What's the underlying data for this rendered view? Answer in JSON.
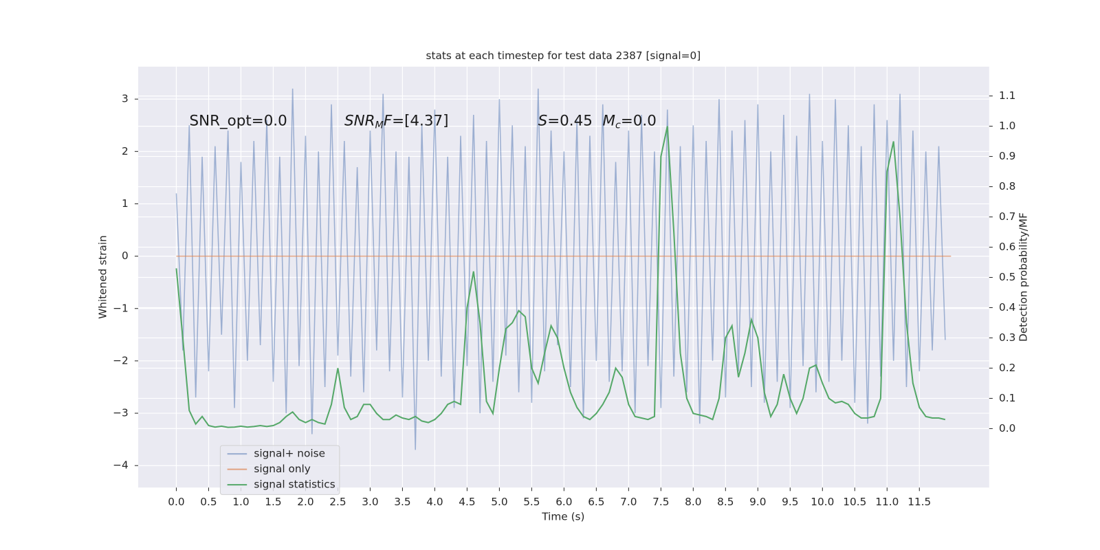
{
  "chart_data": {
    "type": "line",
    "title": "stats at each timestep for test data 2387 [signal=0]",
    "xlabel": "Time (s)",
    "ylabel": "Whitened strain",
    "y2label": "Detection probability/MF",
    "xlim": [
      -0.59,
      12.58
    ],
    "ylim": [
      -4.42,
      3.62
    ],
    "y2lim": [
      -0.195,
      1.197
    ],
    "xticks": [
      {
        "value": 0,
        "label": "0.0"
      },
      0.5,
      {
        "value": 1,
        "label": "1.0"
      },
      1.5,
      {
        "value": 2,
        "label": "2.0"
      },
      2.5,
      {
        "value": 3,
        "label": "3.0"
      },
      3.5,
      {
        "value": 4,
        "label": "4.0"
      },
      4.5,
      {
        "value": 5,
        "label": "5.0"
      },
      5.5,
      {
        "value": 6,
        "label": "6.0"
      },
      6.5,
      {
        "value": 7,
        "label": "7.0"
      },
      7.5,
      {
        "value": 8,
        "label": "8.0"
      },
      8.5,
      {
        "value": 9,
        "label": "9.0"
      },
      9.5,
      {
        "value": 10,
        "label": "10.0"
      },
      10.5,
      {
        "value": 11,
        "label": "11.0"
      },
      11.5
    ],
    "yticks": [
      {
        "value": -4,
        "label": "−4"
      },
      {
        "value": -3,
        "label": "−3"
      },
      {
        "value": -2,
        "label": "−2"
      },
      {
        "value": -1,
        "label": "−1"
      },
      0,
      1,
      2,
      3
    ],
    "y2ticks": [
      {
        "value": 0,
        "label": "0.0"
      },
      0.1,
      0.2,
      0.3,
      0.4,
      0.5,
      0.6,
      0.7,
      0.8,
      0.9,
      {
        "value": 1,
        "label": "1.0"
      },
      1.1
    ],
    "grid": true,
    "background": "#eaeaf2",
    "legend": "lower left",
    "annotations": [
      {
        "parts": [
          {
            "text": "SNR_opt=0.0",
            "style": "normal"
          }
        ]
      },
      {
        "parts": [
          {
            "text": "SNR",
            "style": "italic"
          },
          {
            "text": "M",
            "style": "sub"
          },
          {
            "text": "F",
            "style": "italic"
          },
          {
            "text": "=[4.37]",
            "style": "normal"
          }
        ]
      },
      {
        "parts": [
          {
            "text": "S",
            "style": "italic"
          },
          {
            "text": "=0.45",
            "style": "normal"
          }
        ]
      },
      {
        "parts": [
          {
            "text": "M",
            "style": "italic"
          },
          {
            "text": "c",
            "style": "sub"
          },
          {
            "text": "=0.0",
            "style": "normal"
          }
        ]
      }
    ],
    "x": [
      0,
      0.1,
      0.2,
      0.3,
      0.4,
      0.5,
      0.6,
      0.7,
      0.8,
      0.9,
      1,
      1.1,
      1.2,
      1.3,
      1.4,
      1.5,
      1.6,
      1.7,
      1.8,
      1.9,
      2,
      2.1,
      2.2,
      2.3,
      2.4,
      2.5,
      2.6,
      2.7,
      2.8,
      2.9,
      3,
      3.1,
      3.2,
      3.3,
      3.4,
      3.5,
      3.6,
      3.7,
      3.8,
      3.9,
      4,
      4.1,
      4.2,
      4.3,
      4.4,
      4.5,
      4.6,
      4.7,
      4.8,
      4.9,
      5,
      5.1,
      5.2,
      5.3,
      5.4,
      5.5,
      5.6,
      5.7,
      5.8,
      5.9,
      6,
      6.1,
      6.2,
      6.3,
      6.4,
      6.5,
      6.6,
      6.7,
      6.8,
      6.9,
      7,
      7.1,
      7.2,
      7.3,
      7.4,
      7.5,
      7.6,
      7.7,
      7.8,
      7.9,
      8,
      8.1,
      8.2,
      8.3,
      8.4,
      8.5,
      8.6,
      8.7,
      8.8,
      8.9,
      9,
      9.1,
      9.2,
      9.3,
      9.4,
      9.5,
      9.6,
      9.7,
      9.8,
      9.9,
      10,
      10.1,
      10.2,
      10.3,
      10.4,
      10.5,
      10.6,
      10.7,
      10.8,
      10.9,
      11,
      11.1,
      11.2,
      11.3,
      11.4,
      11.5,
      11.6,
      11.7,
      11.8,
      11.9
    ],
    "series": [
      {
        "name": "signal+ noise",
        "color": "#4c72b0",
        "opacity": 0.5,
        "axis": "y",
        "values": [
          1.2,
          -1.8,
          2.5,
          -2.7,
          1.9,
          -2.2,
          2.1,
          -1.5,
          2.4,
          -2.9,
          1.8,
          -2.0,
          2.2,
          -1.7,
          2.6,
          -2.4,
          1.9,
          -3.0,
          3.2,
          -2.1,
          2.3,
          -3.4,
          2.0,
          -2.5,
          2.9,
          -1.9,
          2.2,
          -2.3,
          1.7,
          -2.6,
          2.4,
          -1.8,
          3.1,
          -2.2,
          2.0,
          -2.7,
          1.9,
          -3.7,
          2.5,
          -2.0,
          2.8,
          -2.3,
          1.9,
          -2.9,
          2.3,
          -2.1,
          2.7,
          -3.0,
          2.2,
          -2.4,
          3.0,
          -1.9,
          2.5,
          -2.6,
          2.1,
          -2.8,
          3.2,
          -2.2,
          2.4,
          -1.7,
          2.0,
          -2.5,
          2.6,
          -3.1,
          2.3,
          -2.0,
          2.9,
          -2.4,
          1.8,
          -2.2,
          2.4,
          -3.0,
          2.7,
          -2.1,
          2.0,
          -2.9,
          2.8,
          -2.3,
          2.1,
          -2.6,
          2.5,
          -3.2,
          2.2,
          -2.0,
          3.0,
          -2.7,
          2.4,
          -2.2,
          2.6,
          -2.5,
          2.9,
          -2.8,
          2.0,
          -2.4,
          2.7,
          -2.9,
          2.3,
          -2.1,
          3.1,
          -2.6,
          2.2,
          -2.4,
          3.0,
          -2.0,
          2.5,
          -2.8,
          2.1,
          -3.2,
          2.9,
          -2.3,
          2.6,
          -2.0,
          3.1,
          -2.5,
          2.4,
          -2.2,
          2.0,
          -1.8,
          2.1,
          -1.6
        ]
      },
      {
        "name": "signal only",
        "color": "#dd8452",
        "opacity": 0.7,
        "axis": "y",
        "x": [
          0,
          11.99
        ],
        "values": [
          0,
          0
        ]
      },
      {
        "name": "signal statistics",
        "color": "#55a868",
        "opacity": 1,
        "axis": "y2",
        "values": [
          0.53,
          0.3,
          0.06,
          0.015,
          0.04,
          0.01,
          0.005,
          0.008,
          0.004,
          0.005,
          0.008,
          0.005,
          0.007,
          0.01,
          0.007,
          0.01,
          0.02,
          0.04,
          0.055,
          0.03,
          0.02,
          0.03,
          0.02,
          0.015,
          0.08,
          0.2,
          0.07,
          0.03,
          0.04,
          0.08,
          0.08,
          0.05,
          0.03,
          0.03,
          0.045,
          0.035,
          0.03,
          0.04,
          0.025,
          0.02,
          0.03,
          0.05,
          0.08,
          0.09,
          0.08,
          0.4,
          0.52,
          0.35,
          0.09,
          0.05,
          0.2,
          0.33,
          0.35,
          0.39,
          0.37,
          0.2,
          0.15,
          0.25,
          0.34,
          0.3,
          0.2,
          0.12,
          0.07,
          0.04,
          0.03,
          0.05,
          0.08,
          0.12,
          0.2,
          0.17,
          0.08,
          0.04,
          0.035,
          0.03,
          0.04,
          0.9,
          1.0,
          0.65,
          0.25,
          0.1,
          0.05,
          0.045,
          0.04,
          0.03,
          0.1,
          0.3,
          0.34,
          0.17,
          0.25,
          0.36,
          0.3,
          0.12,
          0.04,
          0.08,
          0.18,
          0.1,
          0.05,
          0.1,
          0.2,
          0.21,
          0.15,
          0.1,
          0.085,
          0.09,
          0.08,
          0.05,
          0.035,
          0.035,
          0.04,
          0.1,
          0.85,
          0.95,
          0.7,
          0.35,
          0.15,
          0.07,
          0.04,
          0.035,
          0.035,
          0.03
        ]
      }
    ]
  }
}
